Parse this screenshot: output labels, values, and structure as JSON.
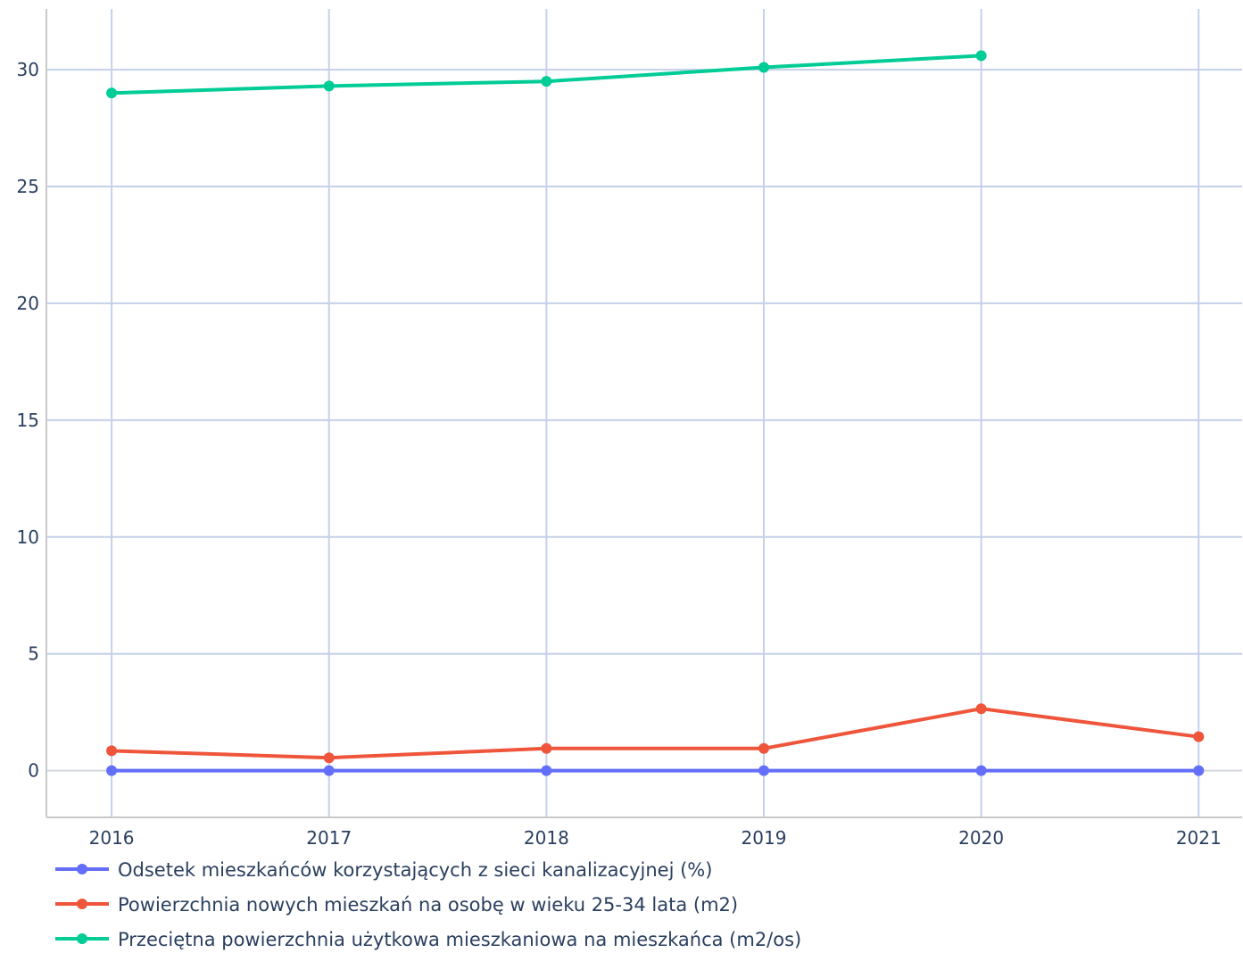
{
  "chart_data": {
    "type": "line",
    "title": "",
    "xlabel": "",
    "ylabel": "",
    "x": [
      2016,
      2017,
      2018,
      2019,
      2020,
      2021
    ],
    "xlim": [
      2015.7,
      2021.2
    ],
    "ylim": [
      -2,
      32.6
    ],
    "yticks": [
      0,
      5,
      10,
      15,
      20,
      25,
      30
    ],
    "grid": true,
    "legend_position": "bottom-left",
    "series": [
      {
        "name": "Odsetek mieszkańców korzystających z sieci kanalizacyjnej (%)",
        "color": "#636efa",
        "values": [
          0,
          0,
          0,
          0,
          0,
          0
        ]
      },
      {
        "name": "Powierzchnia nowych mieszkań na osobę w wieku 25-34 lata (m2)",
        "color": "#ef553b",
        "values": [
          0.85,
          0.55,
          0.95,
          0.95,
          2.65,
          1.45
        ]
      },
      {
        "name": "Przeciętna powierzchnia użytkowa mieszkaniowa na mieszkańca (m2/os)",
        "color": "#00cc96",
        "values": [
          29.0,
          29.3,
          29.5,
          30.1,
          30.6,
          null
        ]
      }
    ]
  }
}
